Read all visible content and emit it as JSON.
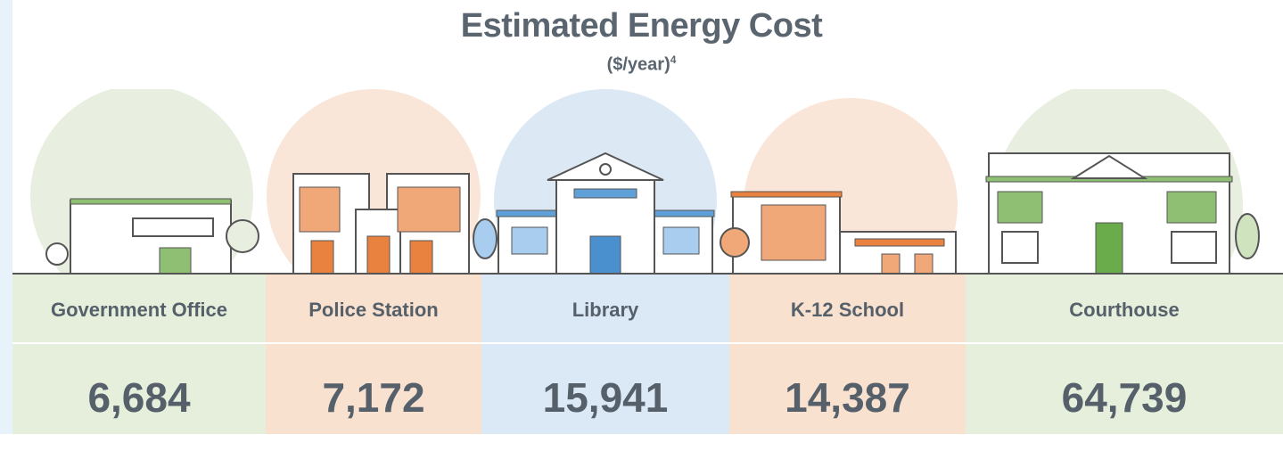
{
  "title": "Estimated Energy Cost",
  "subtitle": "($/year)",
  "subtitle_footnote": "4",
  "columns": [
    {
      "name": "Government Office",
      "value": "6,684"
    },
    {
      "name": "Police Station",
      "value": "7,172"
    },
    {
      "name": "Library",
      "value": "15,941"
    },
    {
      "name": "K-12 School",
      "value": "14,387"
    },
    {
      "name": "Courthouse",
      "value": "64,739"
    }
  ]
}
